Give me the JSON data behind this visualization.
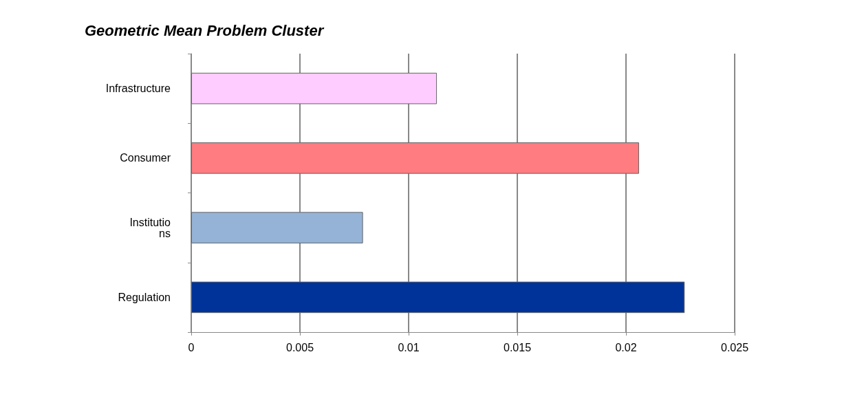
{
  "chart_data": {
    "type": "bar",
    "orientation": "horizontal",
    "title": "Geometric Mean Problem Cluster",
    "categories": [
      "Infrastructure",
      "Consumer",
      "Institutio\nns",
      "Regulation"
    ],
    "values": [
      0.0113,
      0.0206,
      0.0079,
      0.0227
    ],
    "colors": [
      "#ffccff",
      "#ff7c80",
      "#95b3d7",
      "#003399"
    ],
    "xlim": [
      0,
      0.025
    ],
    "xticks": [
      0,
      0.005,
      0.01,
      0.015,
      0.02,
      0.025
    ],
    "grid": "x"
  }
}
